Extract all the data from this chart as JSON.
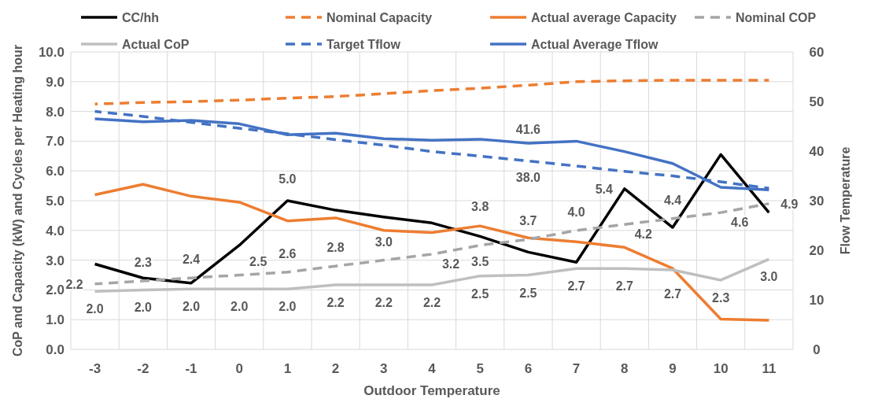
{
  "chart_data": {
    "type": "line",
    "xlabel": "Outdoor Temperature",
    "ylabel": "CoP and Capacity (kW) and Cycles per Heating hour",
    "y2label": "Flow Temperature",
    "categories": [
      "-3",
      "-2",
      "-1",
      "0",
      "1",
      "2",
      "3",
      "4",
      "5",
      "6",
      "7",
      "8",
      "9",
      "10",
      "11"
    ],
    "ylim": [
      0,
      10
    ],
    "yticks": [
      {
        "value": 0,
        "label": "0.0"
      },
      {
        "value": 1,
        "label": "1.0"
      },
      {
        "value": 2,
        "label": "2.0"
      },
      {
        "value": 3,
        "label": "3.0"
      },
      {
        "value": 4,
        "label": "4.0"
      },
      {
        "value": 5,
        "label": "5.0"
      },
      {
        "value": 6,
        "label": "6.0"
      },
      {
        "value": 7,
        "label": "7.0"
      },
      {
        "value": 8,
        "label": "8.0"
      },
      {
        "value": 9,
        "label": "9.0"
      },
      {
        "value": 10,
        "label": "10.0"
      }
    ],
    "y2lim": [
      0,
      60
    ],
    "y2ticks": [
      0,
      10,
      20,
      30,
      40,
      50,
      60
    ],
    "grid": true,
    "legend": "top",
    "marker": "none",
    "series": [
      {
        "name": "CC/hh",
        "color": "#000000",
        "line_style": "solid",
        "values": [
          2.87,
          2.4,
          2.23,
          3.5,
          5.0,
          4.68,
          4.45,
          4.25,
          3.8,
          3.27,
          2.93,
          5.4,
          4.1,
          6.55,
          4.6
        ],
        "value_labels": [
          null,
          null,
          null,
          null,
          "5.0",
          null,
          null,
          null,
          "3.8",
          null,
          null,
          "5.4",
          null,
          null,
          null
        ]
      },
      {
        "name": "Nominal Capacity",
        "color": "#ed7d31",
        "line_style": "dashed",
        "values": [
          8.25,
          8.3,
          8.33,
          8.38,
          8.45,
          8.5,
          8.6,
          8.7,
          8.78,
          8.88,
          9.0,
          9.03,
          9.05,
          9.05,
          9.05
        ]
      },
      {
        "name": "Actual average Capacity",
        "color": "#ed7d31",
        "line_style": "solid",
        "values": [
          5.2,
          5.55,
          5.15,
          4.95,
          4.32,
          4.42,
          4.0,
          3.93,
          4.15,
          3.75,
          3.62,
          3.43,
          2.72,
          1.02,
          0.98
        ]
      },
      {
        "name": "Nominal COP",
        "color": "#a5a5a5",
        "line_style": "dashed",
        "values": [
          2.2,
          2.3,
          2.4,
          2.5,
          2.6,
          2.8,
          3.0,
          3.2,
          3.5,
          3.7,
          4.0,
          4.2,
          4.4,
          4.6,
          4.9
        ],
        "value_labels": [
          "2.2",
          "2.3",
          "2.4",
          "2.5",
          "2.6",
          "2.8",
          "3.0",
          "3.2",
          "3.5",
          "3.7",
          "4.0",
          "4.2",
          "4.4",
          "4.6",
          "4.9"
        ]
      },
      {
        "name": "Actual CoP",
        "color": "#bfbfbf",
        "line_style": "solid",
        "values": [
          1.95,
          2.0,
          2.03,
          2.03,
          2.03,
          2.17,
          2.17,
          2.17,
          2.47,
          2.5,
          2.72,
          2.72,
          2.67,
          2.33,
          3.03
        ],
        "value_labels": [
          "2.0",
          "2.0",
          "2.0",
          "2.0",
          "2.0",
          "2.2",
          "2.2",
          "2.2",
          "2.5",
          "2.5",
          "2.7",
          "2.7",
          "2.7",
          "2.3",
          "3.0"
        ]
      },
      {
        "name": "Target Tflow",
        "color": "#4472c4",
        "line_style": "dashed",
        "axis": "y2",
        "values": [
          48,
          47,
          45.8,
          44.6,
          43.5,
          42.3,
          41.2,
          39.9,
          39,
          38.0,
          37,
          35.9,
          35,
          33.8,
          32.5
        ],
        "value_labels": [
          null,
          null,
          null,
          null,
          null,
          null,
          null,
          null,
          null,
          "38.0",
          null,
          null,
          null,
          null,
          null
        ]
      },
      {
        "name": "Actual Average Tflow",
        "color": "#4472c4",
        "line_style": "solid",
        "axis": "y2",
        "values": [
          46.5,
          45.9,
          46.2,
          45.5,
          43.3,
          43.6,
          42.5,
          42.2,
          42.4,
          41.6,
          42.0,
          39.9,
          37.5,
          32.7,
          32.2
        ],
        "value_labels": [
          null,
          null,
          null,
          null,
          null,
          null,
          null,
          null,
          null,
          "41.6",
          null,
          null,
          null,
          null,
          null
        ]
      }
    ]
  }
}
